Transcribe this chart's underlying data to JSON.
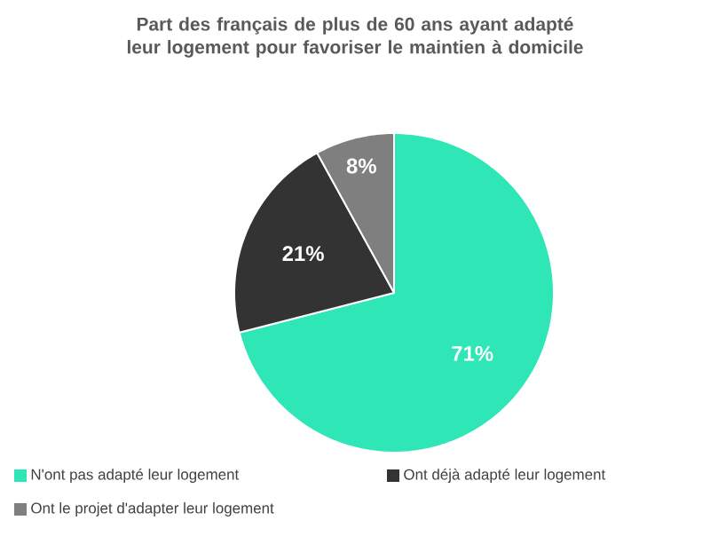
{
  "chart_data": {
    "type": "pie",
    "title": "Part des français de plus de 60 ans ayant adapté leur logement pour favoriser le maintien à domicile",
    "categories": [
      "N'ont pas adapté leur logement",
      "Ont déjà adapté leur logement",
      "Ont le projet d'adapter leur logement"
    ],
    "values": [
      71,
      21,
      8
    ],
    "colors": [
      "#2ee6b6",
      "#333333",
      "#7f7f7f"
    ],
    "value_labels": [
      "71%",
      "21%",
      "8%"
    ],
    "legend": "bottom"
  }
}
